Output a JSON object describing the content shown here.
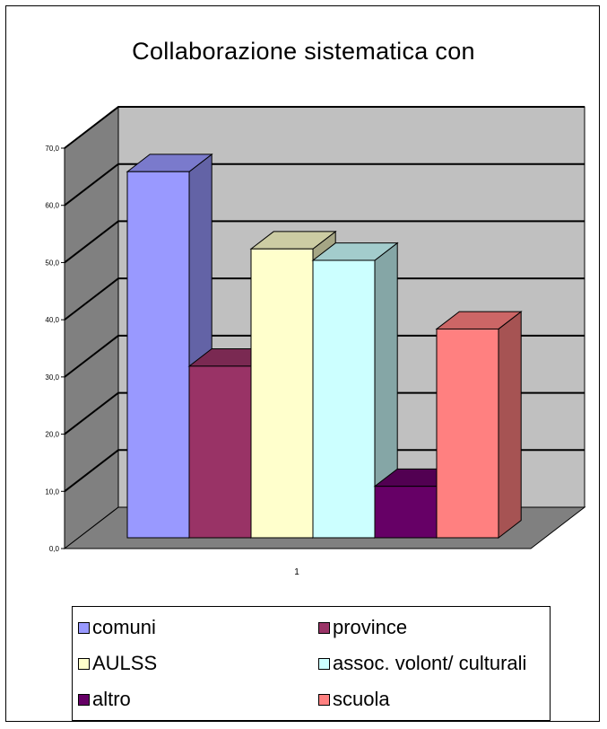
{
  "chart_data": {
    "type": "bar",
    "title": "Collaborazione sistematica con",
    "categories": [
      ""
    ],
    "x_tick_label": "1",
    "xlabel": "",
    "ylabel": "",
    "ylim": [
      0,
      70
    ],
    "y_ticks": [
      "0,0",
      "10,0",
      "20,0",
      "30,0",
      "40,0",
      "50,0",
      "60,0",
      "70,0"
    ],
    "grid": true,
    "legend_position": "bottom",
    "series": [
      {
        "name": "comuni",
        "values": [
          64
        ],
        "color": "#9999ff"
      },
      {
        "name": "province",
        "values": [
          30
        ],
        "color": "#993366"
      },
      {
        "name": "AULSS",
        "values": [
          50.5
        ],
        "color": "#ffffcc"
      },
      {
        "name": "assoc. volont/ culturali",
        "values": [
          48.5
        ],
        "color": "#ccffff"
      },
      {
        "name": "altro",
        "values": [
          9
        ],
        "color": "#660066"
      },
      {
        "name": "scuola",
        "values": [
          36.5
        ],
        "color": "#ff8080"
      }
    ]
  },
  "legend": {
    "items": [
      {
        "label": "comuni",
        "color": "#9999ff"
      },
      {
        "label": "province",
        "color": "#993366"
      },
      {
        "label": "AULSS",
        "color": "#ffffcc"
      },
      {
        "label": "assoc. volont/ culturali",
        "color": "#ccffff"
      },
      {
        "label": "altro",
        "color": "#660066"
      },
      {
        "label": "scuola",
        "color": "#ff8080"
      }
    ]
  }
}
